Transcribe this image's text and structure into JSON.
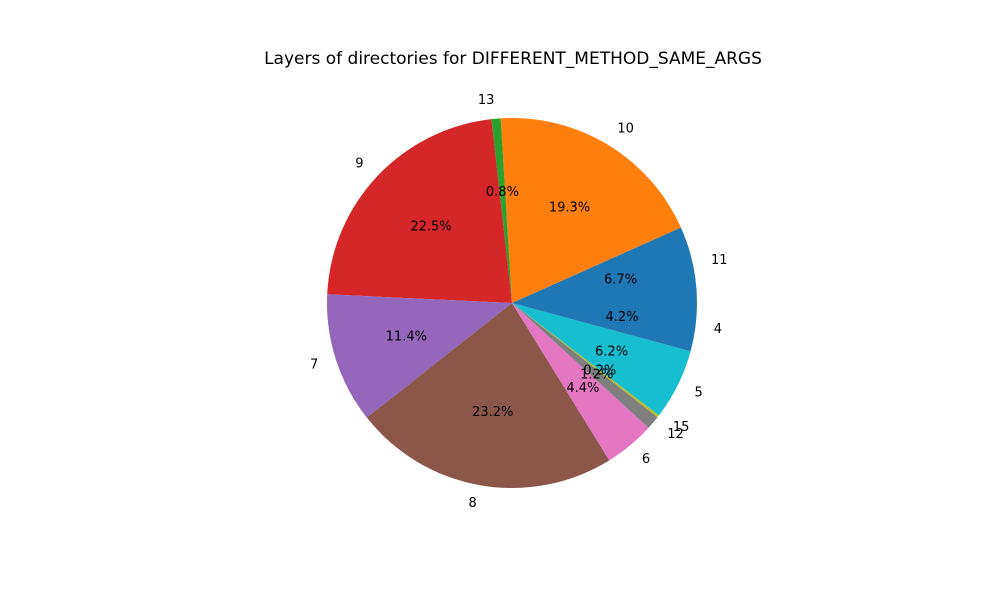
{
  "chart_data": {
    "type": "pie",
    "title": "Layers of directories for DIFFERENT_METHOD_SAME_ARGS",
    "start_angle_deg": 0,
    "direction": "counterclockwise",
    "slices": [
      {
        "label": "11",
        "value": 6.7,
        "pct_label": "6.7%",
        "color": "#1f77b4"
      },
      {
        "label": "10",
        "value": 19.3,
        "pct_label": "19.3%",
        "color": "#ff7f0e"
      },
      {
        "label": "13",
        "value": 0.8,
        "pct_label": "0.8%",
        "color": "#2ca02c"
      },
      {
        "label": "9",
        "value": 22.5,
        "pct_label": "22.5%",
        "color": "#d62728"
      },
      {
        "label": "7",
        "value": 11.4,
        "pct_label": "11.4%",
        "color": "#9467bd"
      },
      {
        "label": "8",
        "value": 23.2,
        "pct_label": "23.2%",
        "color": "#8c564b"
      },
      {
        "label": "6",
        "value": 4.4,
        "pct_label": "4.4%",
        "color": "#e377c2"
      },
      {
        "label": "12",
        "value": 1.2,
        "pct_label": "1.2%",
        "color": "#7f7f7f"
      },
      {
        "label": "15",
        "value": 0.2,
        "pct_label": "0.2%",
        "color": "#bcbd22"
      },
      {
        "label": "5",
        "value": 6.2,
        "pct_label": "6.2%",
        "color": "#17becf"
      },
      {
        "label": "4",
        "value": 4.2,
        "pct_label": "4.2%",
        "color": "#1f77b4"
      }
    ]
  }
}
